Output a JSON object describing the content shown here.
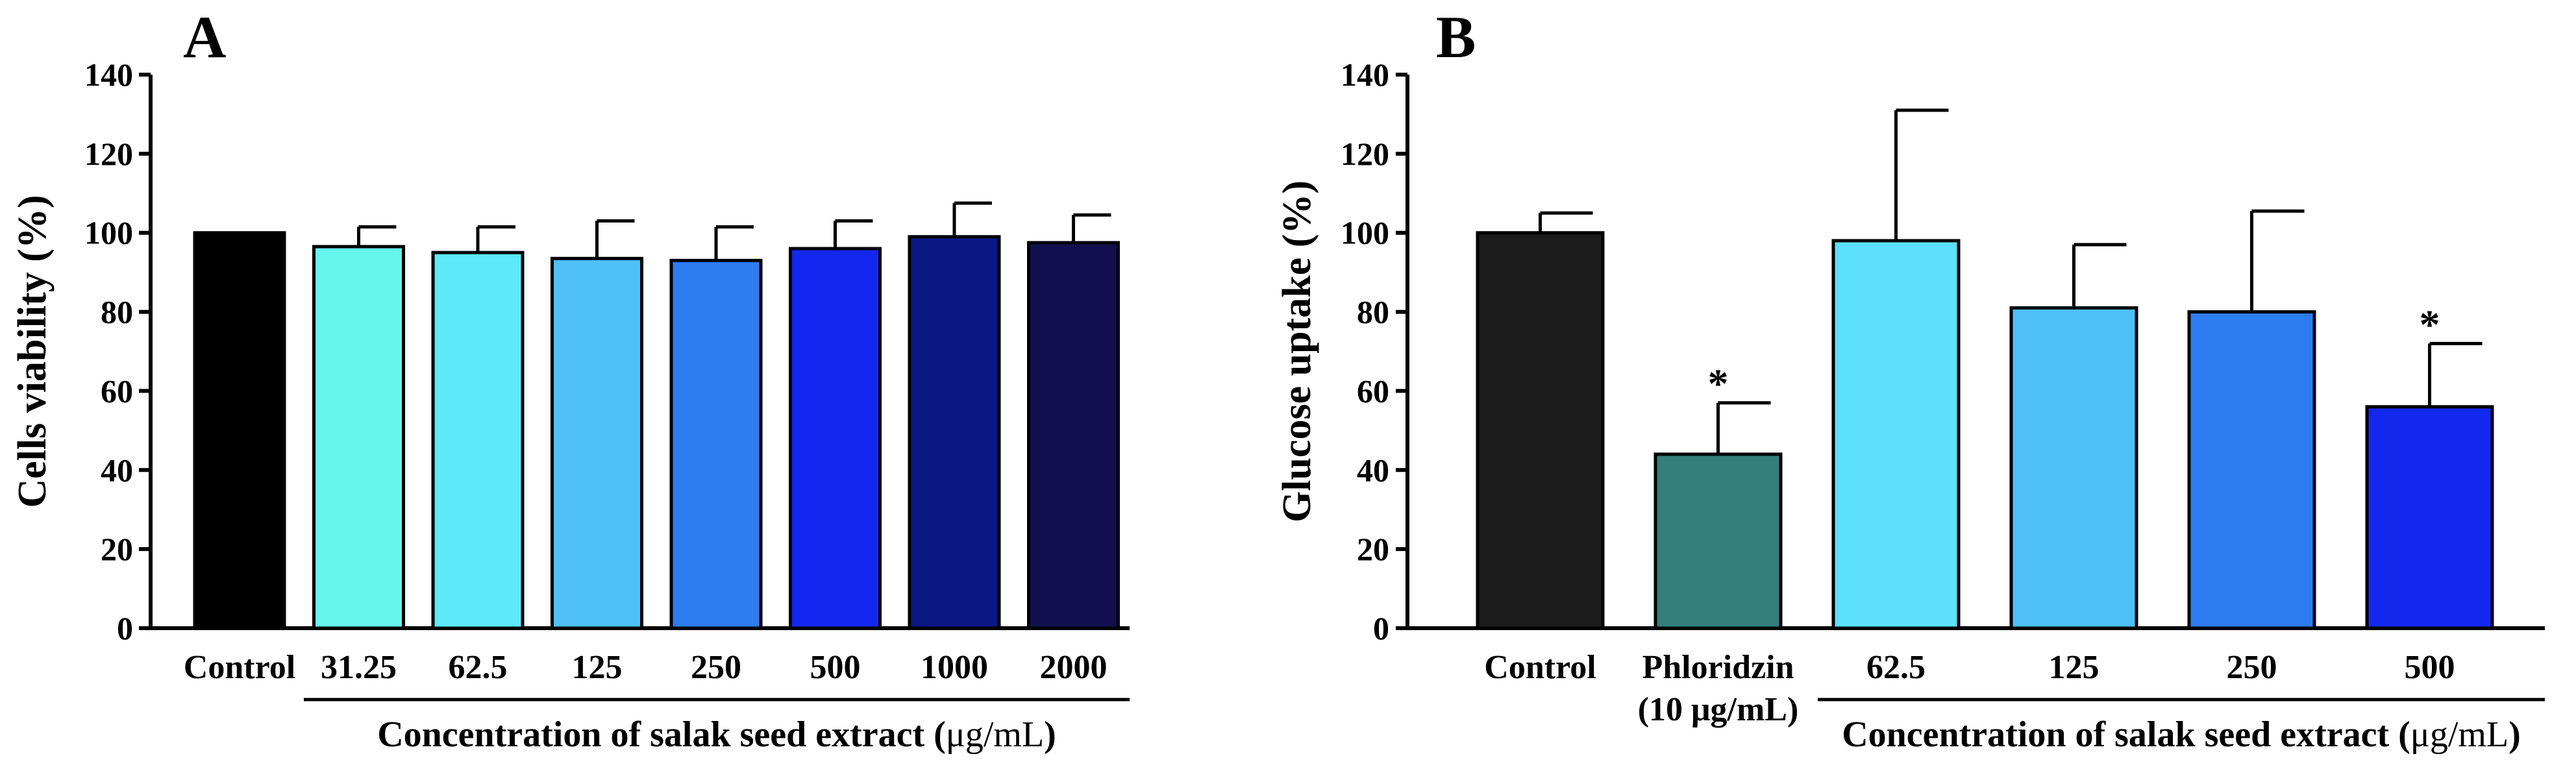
{
  "chart_data": [
    {
      "panel_label": "A",
      "type": "bar",
      "ylabel": "Cells viability (%)",
      "ylim": [
        0,
        140
      ],
      "yticks": [
        0,
        20,
        40,
        60,
        80,
        100,
        120,
        140
      ],
      "categories": [
        "Control",
        "31.25",
        "62.5",
        "125",
        "250",
        "500",
        "1000",
        "2000"
      ],
      "values": [
        100,
        96.5,
        95,
        93.5,
        93,
        96,
        99,
        97.5
      ],
      "errors": [
        0,
        5,
        6.5,
        9.5,
        8.5,
        7,
        8.5,
        7
      ],
      "significance": [
        "",
        "",
        "",
        "",
        "",
        "",
        "",
        ""
      ],
      "colors": [
        "#000000",
        "#66F7EC",
        "#5CEAF8",
        "#4FC0F7",
        "#2E7CF1",
        "#1328EF",
        "#0B1785",
        "#130F4E"
      ],
      "group_label": "Concentration of salak seed extract (μg/mL)",
      "group_label_plain": "Concentration of salak seed extract (",
      "group_label_unit": "μg/mL",
      "group_label_close": ")"
    },
    {
      "panel_label": "B",
      "type": "bar",
      "ylabel": "Glucose uptake (%)",
      "ylim": [
        0,
        140
      ],
      "yticks": [
        0,
        20,
        40,
        60,
        80,
        100,
        120,
        140
      ],
      "categories": [
        "Control",
        "Phloridzin",
        "62.5",
        "125",
        "250",
        "500"
      ],
      "category_sublabels": [
        "",
        "(10 μg/mL)",
        "",
        "",
        "",
        ""
      ],
      "values": [
        100,
        44,
        98,
        81,
        80,
        56
      ],
      "errors": [
        5,
        13,
        33,
        16,
        25.5,
        16
      ],
      "significance": [
        "",
        "*",
        "",
        "",
        "",
        "*"
      ],
      "colors": [
        "#1C1C1C",
        "#347F7E",
        "#5CE0F9",
        "#4FC0F7",
        "#2E7CF1",
        "#1328EF"
      ],
      "group_label": "Concentration of salak seed extract (μg/mL)",
      "group_label_plain": "Concentration of salak seed extract (",
      "group_label_unit": "μg/mL",
      "group_label_close": ")"
    }
  ]
}
